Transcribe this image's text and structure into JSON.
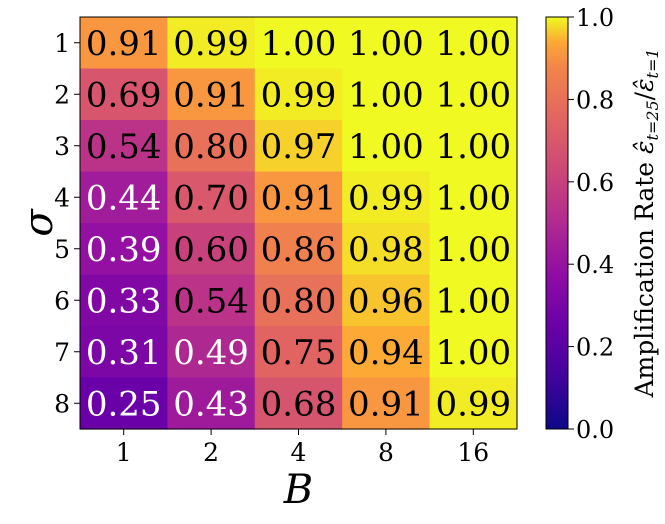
{
  "chart_data": {
    "type": "heatmap",
    "title": "",
    "xlabel": "B",
    "ylabel": "σ",
    "x_categories": [
      "1",
      "2",
      "4",
      "8",
      "16"
    ],
    "y_categories": [
      "1",
      "2",
      "3",
      "4",
      "5",
      "6",
      "7",
      "8"
    ],
    "values": [
      [
        0.91,
        0.99,
        1.0,
        1.0,
        1.0
      ],
      [
        0.69,
        0.91,
        0.99,
        1.0,
        1.0
      ],
      [
        0.54,
        0.8,
        0.97,
        1.0,
        1.0
      ],
      [
        0.44,
        0.7,
        0.91,
        0.99,
        1.0
      ],
      [
        0.39,
        0.6,
        0.86,
        0.98,
        1.0
      ],
      [
        0.33,
        0.54,
        0.8,
        0.96,
        1.0
      ],
      [
        0.31,
        0.49,
        0.75,
        0.94,
        1.0
      ],
      [
        0.25,
        0.43,
        0.68,
        0.91,
        0.99
      ]
    ],
    "value_labels": [
      [
        "0.91",
        "0.99",
        "1.00",
        "1.00",
        "1.00"
      ],
      [
        "0.69",
        "0.91",
        "0.99",
        "1.00",
        "1.00"
      ],
      [
        "0.54",
        "0.80",
        "0.97",
        "1.00",
        "1.00"
      ],
      [
        "0.44",
        "0.70",
        "0.91",
        "0.99",
        "1.00"
      ],
      [
        "0.39",
        "0.60",
        "0.86",
        "0.98",
        "1.00"
      ],
      [
        "0.33",
        "0.54",
        "0.80",
        "0.96",
        "1.00"
      ],
      [
        "0.31",
        "0.49",
        "0.75",
        "0.94",
        "1.00"
      ],
      [
        "0.25",
        "0.43",
        "0.68",
        "0.91",
        "0.99"
      ]
    ],
    "colormap": "plasma",
    "color_range": [
      0.0,
      1.0
    ],
    "colorbar": {
      "label": "Amplification Rate ε̂_{t=25}/ε̂_{t=1}",
      "label_main": "Amplification Rate ",
      "label_eps": "ε̂",
      "label_num_sub": "t=25",
      "label_slash": "/",
      "label_den_sub": "t=1",
      "ticks": [
        0.0,
        0.2,
        0.4,
        0.6,
        0.8,
        1.0
      ],
      "tick_labels": [
        "0.0",
        "0.2",
        "0.4",
        "0.6",
        "0.8",
        "1.0"
      ]
    },
    "annotation_text_colors": {
      "dark_cells": "#ffffff",
      "light_cells": "#000000"
    },
    "grid": false
  }
}
